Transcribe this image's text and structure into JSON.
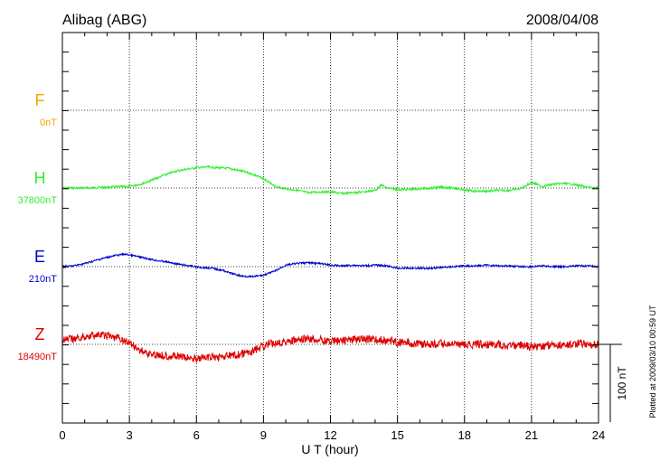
{
  "chart_data": {
    "type": "line",
    "title": "Alibag (ABG)",
    "date": "2008/04/08",
    "xlabel": "U T (hour)",
    "xlim": [
      0,
      24
    ],
    "xticks": [
      "0",
      "3",
      "6",
      "9",
      "12",
      "15",
      "18",
      "21",
      "24"
    ],
    "scale_bar_label": "100 nT",
    "plotted_note": "Plotted at 2009/03/10 00:59 UT",
    "series": [
      {
        "name": "F",
        "baseline_label": "0nT",
        "color": "#f5a800",
        "x": [],
        "y": []
      },
      {
        "name": "H",
        "baseline_label": "37800nT",
        "color": "#33ee33",
        "x": [
          0,
          1,
          2,
          3,
          3.5,
          4,
          4.5,
          5,
          5.5,
          6,
          6.5,
          7,
          7.5,
          8,
          8.5,
          9,
          9.5,
          10,
          10.5,
          11,
          11.5,
          12,
          12.5,
          13,
          13.5,
          14,
          14.3,
          14.5,
          15,
          15.5,
          16,
          16.5,
          17,
          17.5,
          18,
          18.5,
          19,
          19.5,
          20,
          20.5,
          21,
          21.5,
          22,
          22.5,
          23,
          23.5,
          24
        ],
        "y": [
          0,
          0,
          1,
          2,
          5,
          10,
          16,
          21,
          24,
          26,
          27,
          26,
          25,
          22,
          18,
          12,
          2,
          -1,
          -3,
          -6,
          -5,
          -5,
          -7,
          -6,
          -5,
          -3,
          4,
          0,
          -2,
          -2,
          -1,
          0,
          1,
          0,
          -3,
          -4,
          -4,
          -3,
          -3,
          -1,
          7,
          2,
          5,
          6,
          4,
          1,
          0
        ]
      },
      {
        "name": "E",
        "baseline_label": "210nT",
        "color": "#0000cc",
        "x": [
          0,
          0.5,
          1,
          1.5,
          2,
          2.5,
          2.8,
          3.2,
          3.7,
          4.2,
          4.7,
          5.2,
          5.7,
          6.2,
          6.7,
          7.2,
          7.6,
          8,
          8.5,
          9,
          9.5,
          10,
          10.5,
          11,
          11.5,
          12,
          12.5,
          13,
          13.5,
          14,
          14.5,
          15,
          15.5,
          16,
          16.5,
          17,
          17.5,
          18,
          18.5,
          19,
          19.5,
          20,
          20.5,
          21,
          21.5,
          22,
          22.5,
          23,
          23.5,
          24
        ],
        "y": [
          0,
          1,
          4,
          8,
          12,
          15,
          16,
          14,
          11,
          8,
          6,
          3,
          1,
          -1,
          -2,
          -5,
          -9,
          -12,
          -13,
          -11,
          -6,
          2,
          4,
          5,
          4,
          2,
          1,
          2,
          1,
          2,
          1,
          -2,
          -2,
          -2,
          -2,
          -1,
          0,
          1,
          1,
          2,
          1,
          1,
          0,
          0,
          1,
          0,
          0,
          1,
          1,
          0
        ]
      },
      {
        "name": "Z",
        "baseline_label": "18490nT",
        "color": "#dd0000",
        "x": [
          0,
          0.5,
          1,
          1.5,
          2,
          2.5,
          3,
          3.5,
          4,
          4.5,
          5,
          5.5,
          6,
          6.5,
          7,
          7.5,
          8,
          8.5,
          9,
          9.5,
          10,
          10.5,
          11,
          11.5,
          12,
          12.5,
          13,
          13.5,
          14,
          14.5,
          15,
          15.5,
          16,
          16.5,
          17,
          17.5,
          18,
          18.5,
          19,
          19.5,
          20,
          20.5,
          21,
          21.5,
          22,
          22.5,
          23,
          23.5,
          24
        ],
        "y": [
          5,
          7,
          10,
          12,
          11,
          8,
          2,
          -8,
          -13,
          -14,
          -15,
          -17,
          -18,
          -17,
          -16,
          -15,
          -13,
          -9,
          -2,
          2,
          4,
          5,
          7,
          6,
          4,
          5,
          6,
          7,
          6,
          5,
          3,
          2,
          1,
          0,
          1,
          0,
          -1,
          0,
          0,
          0,
          -2,
          -1,
          -3,
          -2,
          0,
          -1,
          1,
          0,
          0
        ]
      }
    ]
  }
}
